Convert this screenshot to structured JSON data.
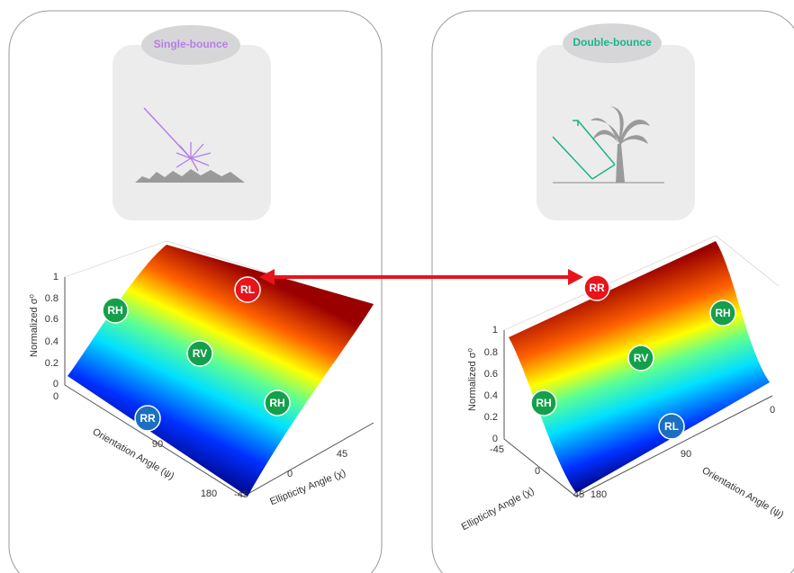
{
  "panels": [
    {
      "title": "Single-bounce",
      "plot": {
        "z_label": "Normalized σ⁰",
        "x_label": "Orientation Angle (ψ)",
        "y_label": "Ellipticity Angle (χ)",
        "z_ticks": [
          "0",
          "0.2",
          "0.4",
          "0.6",
          "0.8",
          "1"
        ],
        "x_ticks": [
          "0",
          "90",
          "180"
        ],
        "y_ticks": [
          "-45",
          "0",
          "45"
        ],
        "markers": [
          "RL",
          "RH",
          "RV",
          "RH",
          "RR"
        ]
      }
    },
    {
      "title": "Double-bounce",
      "plot": {
        "z_label": "Normalized σ⁰",
        "x_label": "Orientation Angle (ψ)",
        "y_label": "Ellipticity Angle (χ)",
        "z_ticks": [
          "0",
          "0.2",
          "0.4",
          "0.6",
          "0.8",
          "1"
        ],
        "x_ticks": [
          "0",
          "90",
          "180"
        ],
        "y_ticks": [
          "-45",
          "0",
          "45"
        ],
        "markers": [
          "RR",
          "RH",
          "RV",
          "RH",
          "RL"
        ]
      }
    }
  ]
}
